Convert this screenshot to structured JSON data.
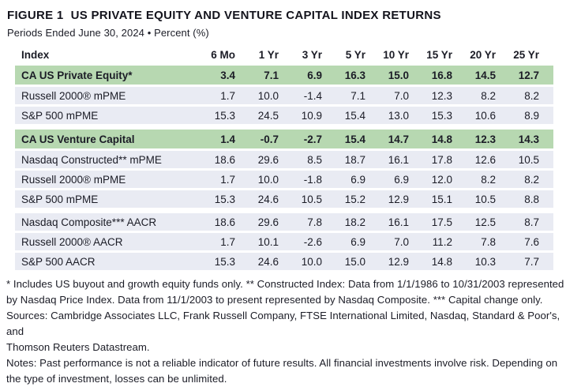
{
  "header": {
    "figure_label": "FIGURE 1",
    "title": "US PRIVATE EQUITY AND VENTURE CAPITAL INDEX RETURNS",
    "subtitle": "Periods Ended June 30, 2024 • Percent (%)"
  },
  "colors": {
    "highlight_row_bg": "#b7d8b1",
    "data_row_bg": "#e9ebf3",
    "text": "#1b1c26"
  },
  "chart_data": {
    "type": "table",
    "title": "US Private Equity and Venture Capital Index Returns",
    "columns": [
      "Index",
      "6 Mo",
      "1 Yr",
      "3 Yr",
      "5 Yr",
      "10 Yr",
      "15 Yr",
      "20 Yr",
      "25 Yr"
    ],
    "rows": [
      {
        "label": "CA US Private Equity*",
        "highlight": true,
        "gap_before": false,
        "values": [
          "3.4",
          "7.1",
          "6.9",
          "16.3",
          "15.0",
          "16.8",
          "14.5",
          "12.7"
        ]
      },
      {
        "label": "Russell 2000® mPME",
        "highlight": false,
        "gap_before": false,
        "values": [
          "1.7",
          "10.0",
          "-1.4",
          "7.1",
          "7.0",
          "12.3",
          "8.2",
          "8.2"
        ]
      },
      {
        "label": "S&P 500 mPME",
        "highlight": false,
        "gap_before": false,
        "values": [
          "15.3",
          "24.5",
          "10.9",
          "15.4",
          "13.0",
          "15.3",
          "10.6",
          "8.9"
        ]
      },
      {
        "label": "CA US Venture Capital",
        "highlight": true,
        "gap_before": true,
        "values": [
          "1.4",
          "-0.7",
          "-2.7",
          "15.4",
          "14.7",
          "14.8",
          "12.3",
          "14.3"
        ]
      },
      {
        "label": "Nasdaq Constructed** mPME",
        "highlight": false,
        "gap_before": false,
        "values": [
          "18.6",
          "29.6",
          "8.5",
          "18.7",
          "16.1",
          "17.8",
          "12.6",
          "10.5"
        ]
      },
      {
        "label": "Russell 2000® mPME",
        "highlight": false,
        "gap_before": false,
        "values": [
          "1.7",
          "10.0",
          "-1.8",
          "6.9",
          "6.9",
          "12.0",
          "8.2",
          "8.2"
        ]
      },
      {
        "label": "S&P 500 mPME",
        "highlight": false,
        "gap_before": false,
        "values": [
          "15.3",
          "24.6",
          "10.5",
          "15.2",
          "12.9",
          "15.1",
          "10.5",
          "8.8"
        ]
      },
      {
        "label": "Nasdaq Composite*** AACR",
        "highlight": false,
        "gap_before": true,
        "values": [
          "18.6",
          "29.6",
          "7.8",
          "18.2",
          "16.1",
          "17.5",
          "12.5",
          "8.7"
        ]
      },
      {
        "label": "Russell 2000® AACR",
        "highlight": false,
        "gap_before": false,
        "values": [
          "1.7",
          "10.1",
          "-2.6",
          "6.9",
          "7.0",
          "11.2",
          "7.8",
          "7.6"
        ]
      },
      {
        "label": "S&P 500 AACR",
        "highlight": false,
        "gap_before": false,
        "values": [
          "15.3",
          "24.6",
          "10.0",
          "15.0",
          "12.9",
          "14.8",
          "10.3",
          "7.7"
        ]
      }
    ]
  },
  "footnotes": {
    "lines": [
      "* Includes US buyout and growth equity funds only. ** Constructed Index: Data from 1/1/1986 to 10/31/2003 represented",
      "by Nasdaq Price Index. Data from 11/1/2003 to present represented by Nasdaq Composite. *** Capital change only.",
      "Sources: Cambridge Associates LLC, Frank Russell Company, FTSE International Limited, Nasdaq, Standard & Poor's, and",
      "Thomson Reuters Datastream.",
      "Notes: Past performance is not a reliable indicator of future results. All financial investments involve risk. Depending on",
      "the type of investment, losses can be unlimited."
    ]
  }
}
